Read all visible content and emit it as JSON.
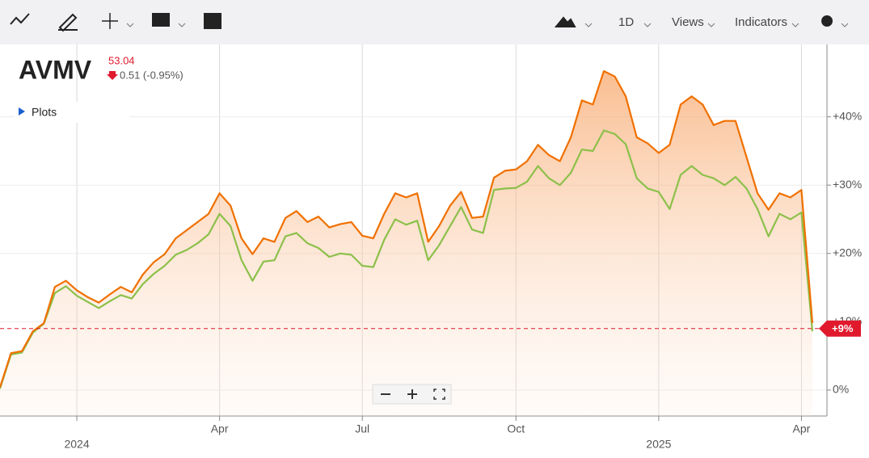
{
  "toolbar": {
    "interval": "1D",
    "views": "Views",
    "indicators": "Indicators"
  },
  "quote": {
    "symbol": "AVMV",
    "price": 53.04,
    "change": "0.51 (-0.95%)"
  },
  "plots_toggle": "Plots",
  "chart_data": {
    "type": "line",
    "categories": [
      null,
      null,
      null,
      null,
      null,
      null,
      null,
      "2024",
      null,
      null,
      null,
      null,
      null,
      null,
      null,
      null,
      null,
      null,
      null,
      null,
      "Apr",
      null,
      null,
      null,
      null,
      null,
      null,
      null,
      null,
      null,
      null,
      null,
      null,
      "Jul",
      null,
      null,
      null,
      null,
      null,
      null,
      null,
      null,
      null,
      null,
      null,
      null,
      null,
      "Oct",
      null,
      null,
      null,
      null,
      null,
      null,
      null,
      null,
      null,
      null,
      null,
      null,
      "2025",
      null,
      null,
      null,
      null,
      null,
      null,
      null,
      null,
      null,
      null,
      null,
      null,
      "Apr",
      null
    ],
    "series": [
      {
        "color": "#f07000",
        "fill": true,
        "values": [
          0.4,
          5.4,
          5.7,
          8.6,
          9.8,
          15.1,
          16.0,
          14.6,
          13.6,
          12.8,
          14.0,
          15.1,
          14.3,
          16.9,
          18.7,
          19.9,
          22.2,
          23.4,
          24.6,
          25.8,
          28.8,
          27.0,
          22.2,
          19.9,
          22.2,
          21.7,
          25.2,
          26.2,
          24.6,
          25.4,
          23.8,
          24.3,
          24.6,
          22.6,
          22.2,
          25.8,
          28.8,
          28.2,
          28.8,
          21.7,
          24.0,
          27.0,
          29.0,
          25.2,
          25.4,
          31.1,
          32.1,
          32.3,
          33.5,
          35.9,
          34.4,
          33.5,
          37.0,
          42.4,
          41.8,
          46.7,
          45.9,
          43.0,
          37.0,
          36.1,
          34.7,
          35.9,
          41.8,
          43.0,
          41.8,
          38.8,
          39.4,
          39.4,
          34.1,
          28.8,
          26.4,
          28.8,
          28.2,
          29.3,
          9.8
        ]
      },
      {
        "color": "#8cc04a",
        "fill": false,
        "values": [
          0.2,
          5.2,
          5.5,
          8.4,
          9.7,
          14.2,
          15.2,
          13.8,
          12.9,
          12.0,
          13.0,
          13.9,
          13.4,
          15.5,
          17.0,
          18.2,
          19.8,
          20.5,
          21.5,
          22.8,
          25.8,
          24.0,
          19.0,
          16.0,
          18.8,
          19.0,
          22.5,
          23.0,
          21.5,
          20.8,
          19.5,
          20.0,
          19.8,
          18.2,
          18.0,
          22.0,
          25.0,
          24.2,
          24.8,
          19.0,
          21.2,
          24.0,
          26.8,
          23.5,
          23.0,
          29.3,
          29.5,
          29.6,
          30.5,
          32.8,
          31.0,
          30.0,
          31.8,
          35.2,
          35.0,
          38.0,
          37.5,
          36.0,
          31.0,
          29.5,
          29.0,
          26.5,
          31.5,
          32.8,
          31.5,
          31.0,
          30.0,
          31.2,
          29.5,
          26.5,
          22.5,
          25.8,
          25.0,
          26.0,
          8.6
        ]
      }
    ],
    "ylim": [
      -3.8,
      50.6
    ],
    "yticks": [
      {
        "value": 0,
        "label": "0%"
      },
      {
        "value": 10,
        "label": "+10%"
      },
      {
        "value": 20,
        "label": "+20%"
      },
      {
        "value": 30,
        "label": "+30%"
      },
      {
        "value": 40,
        "label": "+40%"
      }
    ],
    "grid": true,
    "reference_line": {
      "value": 9,
      "label": "+9%",
      "color": "#e0192c"
    }
  }
}
